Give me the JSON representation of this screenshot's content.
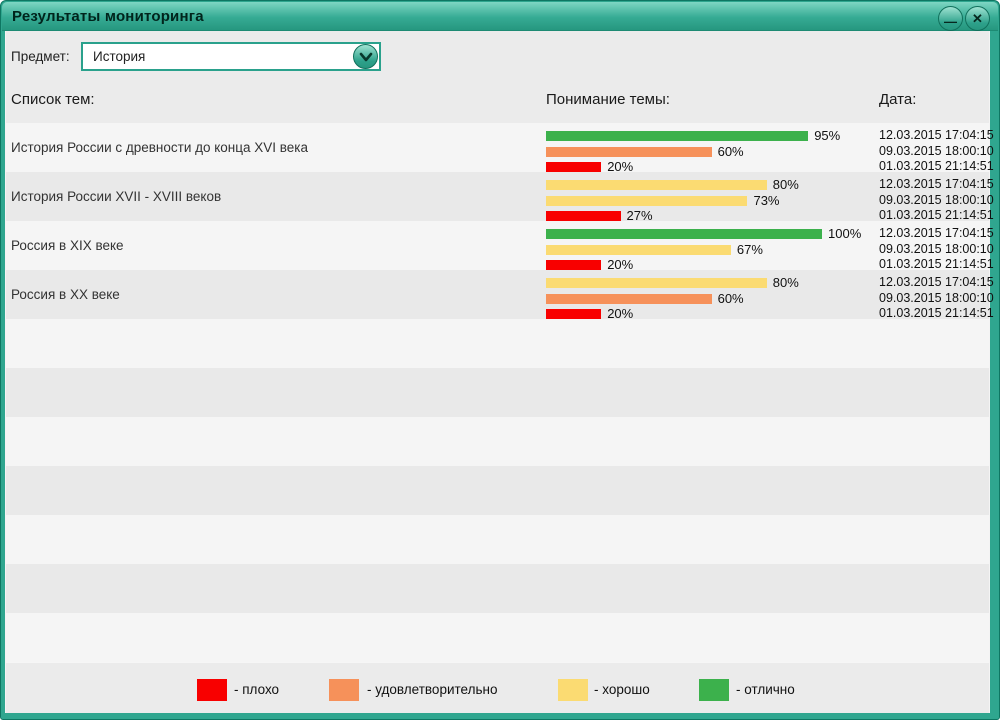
{
  "window": {
    "title": "Результаты мониторинга"
  },
  "icons": {
    "minimize": "—",
    "close": "✕",
    "dropdown_chevron": "chevron-down"
  },
  "filter": {
    "label": "Предмет:",
    "value": "История"
  },
  "headers": {
    "topics": "Список тем:",
    "understanding": "Понимание темы:",
    "date": "Дата:"
  },
  "rows": [
    {
      "topic": "История России с древности до конца XVI века",
      "results": [
        {
          "pct": 95,
          "label": "95%",
          "level": "excellent",
          "date": "12.03.2015 17:04:15"
        },
        {
          "pct": 60,
          "label": "60%",
          "level": "satisfactory",
          "date": "09.03.2015 18:00:10"
        },
        {
          "pct": 20,
          "label": "20%",
          "level": "bad",
          "date": "01.03.2015 21:14:51"
        }
      ]
    },
    {
      "topic": "История России XVII - XVIII веков",
      "results": [
        {
          "pct": 80,
          "label": "80%",
          "level": "good",
          "date": "12.03.2015 17:04:15"
        },
        {
          "pct": 73,
          "label": "73%",
          "level": "good",
          "date": "09.03.2015 18:00:10"
        },
        {
          "pct": 27,
          "label": "27%",
          "level": "bad",
          "date": "01.03.2015 21:14:51"
        }
      ]
    },
    {
      "topic": "Россия в XIX веке",
      "results": [
        {
          "pct": 100,
          "label": "100%",
          "level": "excellent",
          "date": "12.03.2015 17:04:15"
        },
        {
          "pct": 67,
          "label": "67%",
          "level": "good",
          "date": "09.03.2015 18:00:10"
        },
        {
          "pct": 20,
          "label": "20%",
          "level": "bad",
          "date": "01.03.2015 21:14:51"
        }
      ]
    },
    {
      "topic": "Россия в XX веке",
      "results": [
        {
          "pct": 80,
          "label": "80%",
          "level": "good",
          "date": "12.03.2015 17:04:15"
        },
        {
          "pct": 60,
          "label": "60%",
          "level": "satisfactory",
          "date": "09.03.2015 18:00:10"
        },
        {
          "pct": 20,
          "label": "20%",
          "level": "bad",
          "date": "01.03.2015 21:14:51"
        }
      ]
    }
  ],
  "legend": [
    {
      "level": "bad",
      "label": "- плохо"
    },
    {
      "level": "satisfactory",
      "label": "- удовлетворительно"
    },
    {
      "level": "good",
      "label": "- хорошо"
    },
    {
      "level": "excellent",
      "label": "- отлично"
    }
  ],
  "colors": {
    "bad": "#f80000",
    "satisfactory": "#f6915a",
    "good": "#fbdb72",
    "excellent": "#3cb14c",
    "titlebar": "#2fa68f"
  }
}
